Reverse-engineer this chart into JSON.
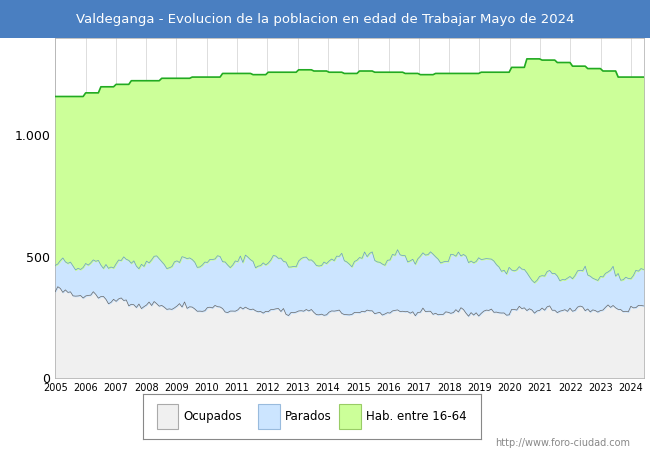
{
  "title": "Valdeganga - Evolucion de la poblacion en edad de Trabajar Mayo de 2024",
  "title_bg": "#4a7fc1",
  "title_color": "white",
  "url_text": "http://www.foro-ciudad.com",
  "legend_labels": [
    "Ocupados",
    "Parados",
    "Hab. entre 16-64"
  ],
  "hab_color": "#ccff99",
  "hab_line_color": "#22aa22",
  "parados_color": "#cce5ff",
  "parados_line_color": "#6699cc",
  "ocupados_color": "#f0f0f0",
  "ocupados_line_color": "#666666",
  "plot_bg": "#ffffff",
  "fig_bg": "#ffffff",
  "ylim": [
    0,
    1400
  ],
  "yticks": [
    0,
    500,
    1000
  ],
  "ytick_labels": [
    "0",
    "500",
    "1.000"
  ],
  "year_start": 2005,
  "year_end": 2024,
  "months": 233
}
